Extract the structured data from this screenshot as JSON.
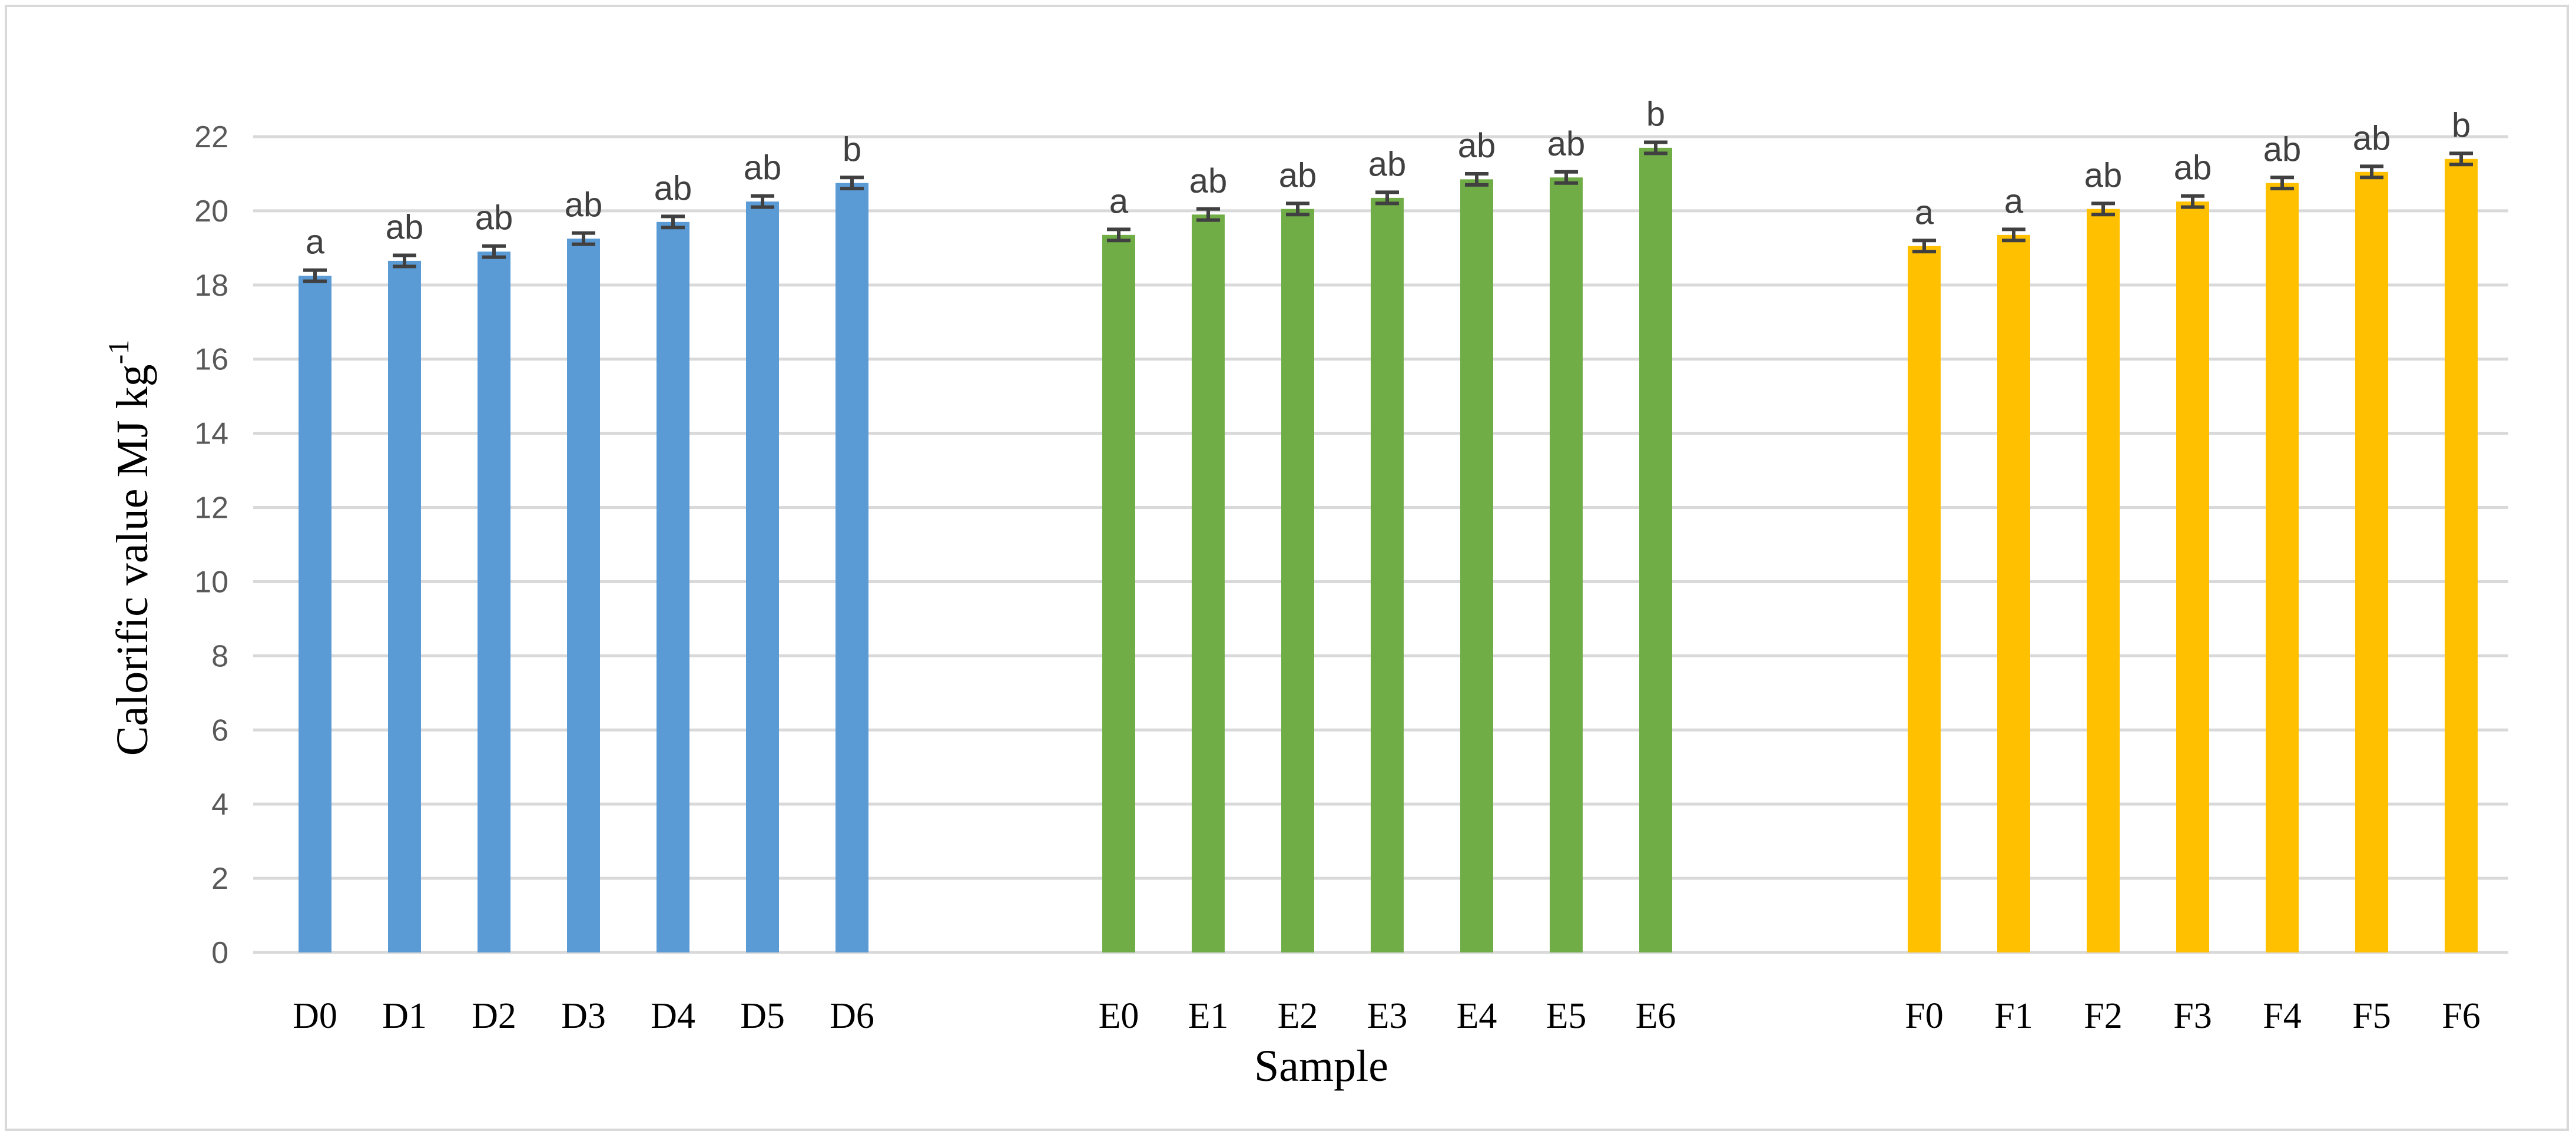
{
  "chart_data": {
    "type": "bar",
    "title": "",
    "xlabel": "Sample",
    "ylabel": "Calorific value  MJ kg",
    "ylabel_superscript": "-1",
    "ylim": [
      0,
      22
    ],
    "yticks": [
      0,
      2,
      4,
      6,
      8,
      10,
      12,
      14,
      16,
      18,
      20,
      22
    ],
    "grid": true,
    "legend": "none",
    "groups": [
      {
        "color": "#5b9bd5",
        "categories": [
          "D0",
          "D1",
          "D2",
          "D3",
          "D4",
          "D5",
          "D6"
        ],
        "values": [
          18.25,
          18.65,
          18.9,
          19.25,
          19.7,
          20.25,
          20.75
        ],
        "errors": [
          0.15,
          0.15,
          0.15,
          0.15,
          0.15,
          0.15,
          0.15
        ],
        "labels": [
          "a",
          "ab",
          "ab",
          "ab",
          "ab",
          "ab",
          "b"
        ]
      },
      {
        "color": "#70ad47",
        "categories": [
          "E0",
          "E1",
          "E2",
          "E3",
          "E4",
          "E5",
          "E6"
        ],
        "values": [
          19.35,
          19.9,
          20.05,
          20.35,
          20.85,
          20.9,
          21.7
        ],
        "errors": [
          0.15,
          0.15,
          0.15,
          0.15,
          0.15,
          0.15,
          0.15
        ],
        "labels": [
          "a",
          "ab",
          "ab",
          "ab",
          "ab",
          "ab",
          "b"
        ]
      },
      {
        "color": "#ffc000",
        "categories": [
          "F0",
          "F1",
          "F2",
          "F3",
          "F4",
          "F5",
          "F6"
        ],
        "values": [
          19.05,
          19.35,
          20.05,
          20.25,
          20.75,
          21.05,
          21.4
        ],
        "errors": [
          0.15,
          0.15,
          0.15,
          0.15,
          0.15,
          0.15,
          0.15
        ],
        "labels": [
          "a",
          "a",
          "ab",
          "ab",
          "ab",
          "ab",
          "b"
        ]
      }
    ],
    "error_bar_color": "#404040",
    "grid_color": "#d9d9d9"
  }
}
